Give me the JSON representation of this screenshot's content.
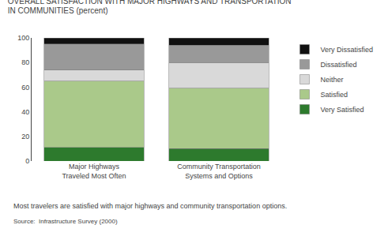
{
  "chart_data": {
    "type": "bar",
    "title": "OVERALL SATISFACTION WITH MAJOR HIGHWAYS AND TRANSPORTATION\nIN COMMUNITIES (percent)",
    "categories": [
      "Major Highways\nTraveled Most Often",
      "Community Transportation\nSystems and Options"
    ],
    "series": [
      {
        "name": "Very Dissatisfied",
        "color": "#111111",
        "values": [
          5,
          6
        ]
      },
      {
        "name": "Dissatisfied",
        "color": "#999999",
        "values": [
          21,
          14
        ]
      },
      {
        "name": "Neither",
        "color": "#d9d9d9",
        "values": [
          9,
          21
        ]
      },
      {
        "name": "Satisfied",
        "color": "#aac98a",
        "values": [
          54,
          49
        ]
      },
      {
        "name": "Very Satisfied",
        "color": "#2d7a2d",
        "values": [
          11,
          10
        ]
      }
    ],
    "stacked": true,
    "ylim": [
      0,
      100
    ],
    "yticks": [
      0,
      20,
      40,
      60,
      80,
      100
    ],
    "grid": false,
    "legend": "right",
    "annotations": [
      "Most travelers are satisfied with major highways and community transportation options.",
      "Source:  Infrastructure Survey (2000)"
    ]
  }
}
